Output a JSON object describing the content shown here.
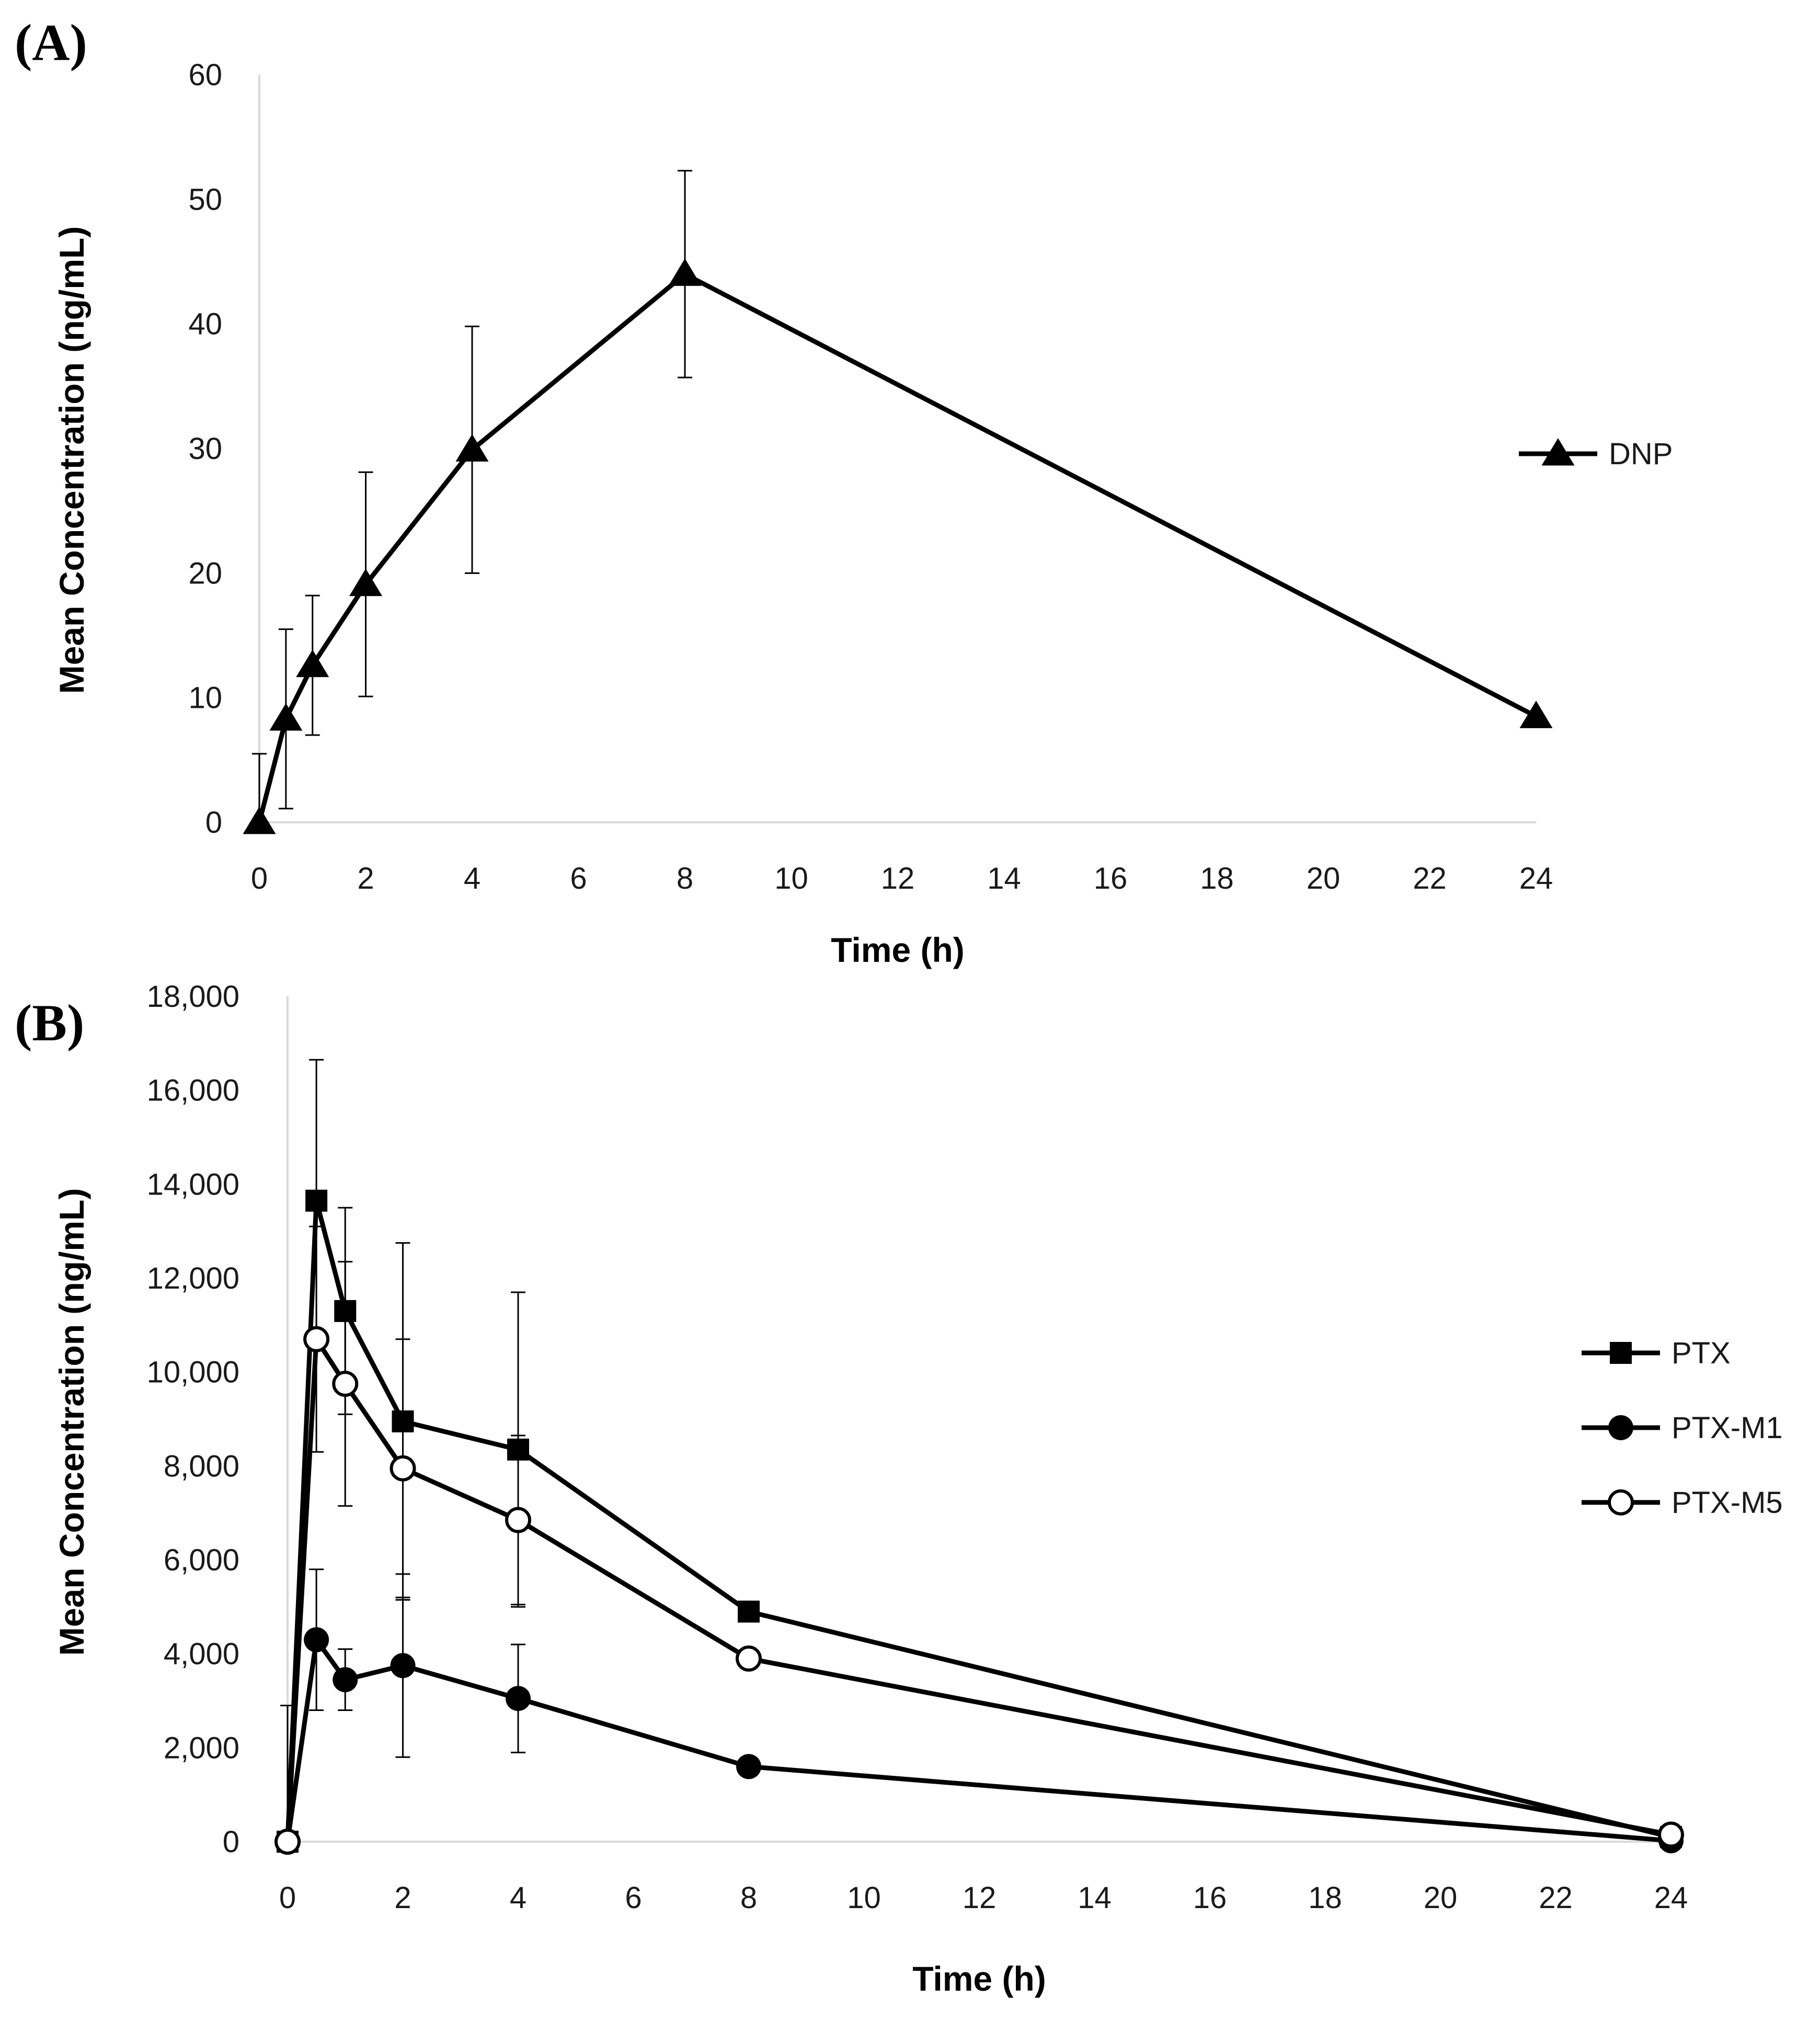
{
  "colors": {
    "line": "#000000",
    "axis": "#d9d9d9",
    "errorbar": "#000000",
    "text": "#1a1a1a"
  },
  "chart_data": [
    {
      "type": "line",
      "panel_label": "(A)",
      "xlabel": "Time (h)",
      "ylabel": "Mean Concentration (ng/mL)",
      "xlim": [
        0,
        24
      ],
      "ylim": [
        0,
        60
      ],
      "xticks": [
        0,
        2,
        4,
        6,
        8,
        10,
        12,
        14,
        16,
        18,
        20,
        22,
        24
      ],
      "yticks": [
        0,
        10,
        20,
        30,
        40,
        50,
        60
      ],
      "ytick_labels": [
        "0",
        "10",
        "20",
        "30",
        "40",
        "50",
        "60"
      ],
      "grid": false,
      "legend_position": "right",
      "series": [
        {
          "name": "DNP",
          "marker": "triangle",
          "x": [
            0,
            0.5,
            1,
            2,
            4,
            8,
            24
          ],
          "y": [
            0,
            8.3,
            12.6,
            19.1,
            29.9,
            44,
            8.5
          ],
          "error": [
            5.5,
            7.2,
            5.6,
            9,
            9.9,
            8.3,
            0
          ]
        }
      ]
    },
    {
      "type": "line",
      "panel_label": "(B)",
      "xlabel": "Time (h)",
      "ylabel": "Mean Concentration (ng/mL)",
      "xlim": [
        0,
        24
      ],
      "ylim": [
        0,
        18000
      ],
      "xticks": [
        0,
        2,
        4,
        6,
        8,
        10,
        12,
        14,
        16,
        18,
        20,
        22,
        24
      ],
      "yticks": [
        0,
        2000,
        4000,
        6000,
        8000,
        10000,
        12000,
        14000,
        16000,
        18000
      ],
      "ytick_labels": [
        "0",
        "2,000",
        "4,000",
        "6,000",
        "8,000",
        "10,000",
        "12,000",
        "14,000",
        "16,000",
        "18,000"
      ],
      "grid": false,
      "legend_position": "right",
      "series": [
        {
          "name": "PTX",
          "marker": "square",
          "x": [
            0,
            0.5,
            1,
            2,
            4,
            8,
            24
          ],
          "y": [
            0,
            13650,
            11300,
            8950,
            8350,
            4900,
            100
          ],
          "error": [
            2900,
            3000,
            2200,
            3800,
            3350,
            0,
            0
          ]
        },
        {
          "name": "PTX-M1",
          "marker": "circle-filled",
          "x": [
            0,
            0.5,
            1,
            2,
            4,
            8,
            24
          ],
          "y": [
            0,
            4300,
            3450,
            3750,
            3050,
            1600,
            20
          ],
          "error": [
            0,
            1500,
            650,
            1950,
            1150,
            0,
            0
          ]
        },
        {
          "name": "PTX-M5",
          "marker": "circle-open",
          "x": [
            0,
            0.5,
            1,
            2,
            4,
            8,
            24
          ],
          "y": [
            0,
            10700,
            9750,
            7950,
            6850,
            3900,
            150
          ],
          "error": [
            0,
            2400,
            2600,
            2750,
            1800,
            0,
            0
          ]
        }
      ]
    }
  ]
}
